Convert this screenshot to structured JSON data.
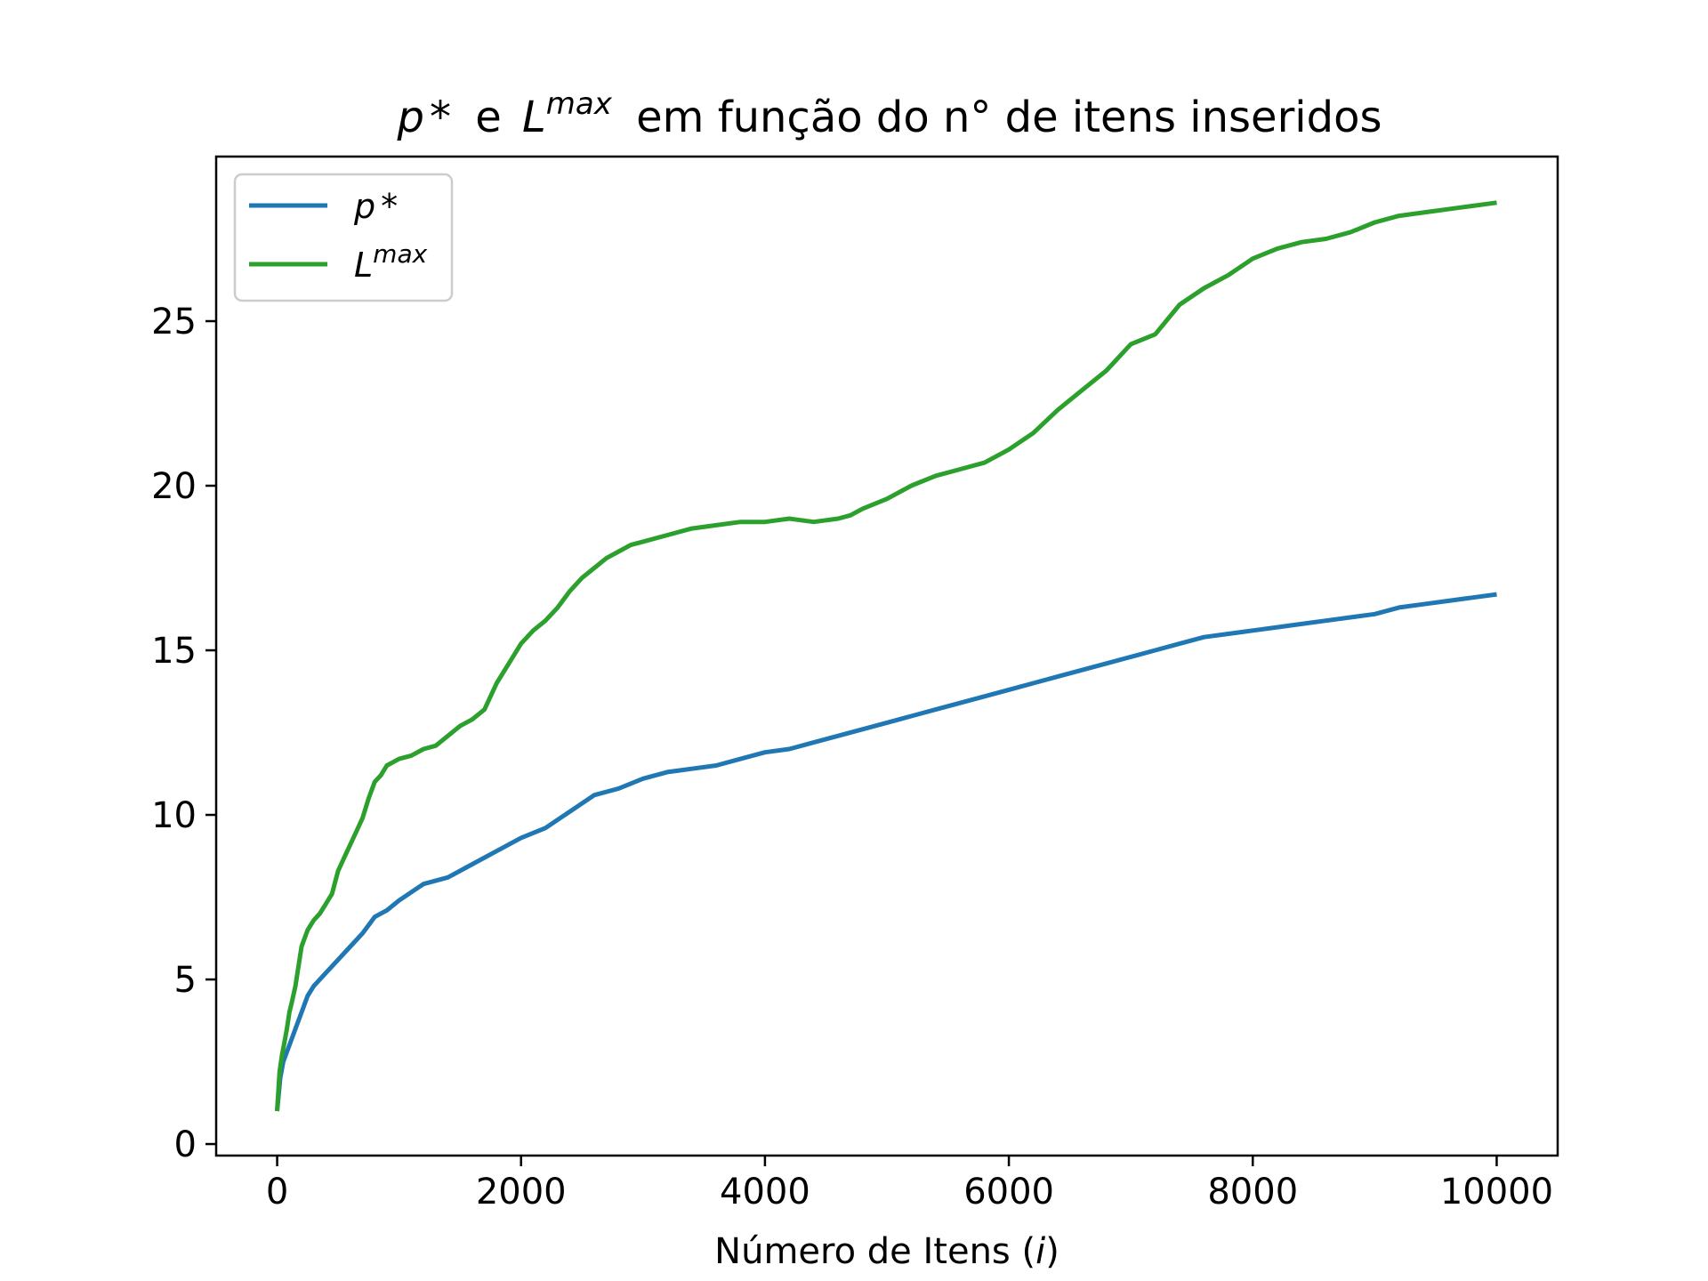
{
  "chart_data": {
    "type": "line",
    "title": {
      "p_symbol": "p",
      "p_star": "*",
      "connector": "e",
      "L_symbol": "L",
      "L_superscript": "max",
      "suffix": "em função do n° de itens inseridos"
    },
    "xlabel": {
      "text": "Número de Itens (",
      "var": "i",
      "close": ")"
    },
    "ylabel": "",
    "xlim": [
      -500,
      10500
    ],
    "ylim": [
      -0.35,
      30.0
    ],
    "xticks": [
      0,
      2000,
      4000,
      6000,
      8000,
      10000
    ],
    "yticks": [
      0,
      5,
      10,
      15,
      20,
      25
    ],
    "grid": false,
    "legend_position": "upper-left",
    "series": [
      {
        "name": "p*",
        "legend": {
          "symbol": "p",
          "suffix": "*"
        },
        "color": "#1f77b4",
        "x": [
          0,
          25,
          50,
          100,
          150,
          200,
          250,
          300,
          400,
          500,
          600,
          700,
          800,
          900,
          1000,
          1200,
          1400,
          1600,
          1800,
          2000,
          2200,
          2400,
          2600,
          2800,
          3000,
          3200,
          3400,
          3600,
          3800,
          4000,
          4200,
          4400,
          4600,
          4800,
          5000,
          5200,
          5400,
          5600,
          5800,
          6000,
          6200,
          6400,
          6600,
          6800,
          7000,
          7200,
          7400,
          7600,
          7800,
          8000,
          8200,
          8400,
          8600,
          8800,
          9000,
          9200,
          9400,
          9600,
          9800,
          10000
        ],
        "y": [
          1.0,
          2.0,
          2.5,
          3.0,
          3.5,
          4.0,
          4.5,
          4.8,
          5.2,
          5.6,
          6.0,
          6.4,
          6.9,
          7.1,
          7.4,
          7.9,
          8.1,
          8.5,
          8.9,
          9.3,
          9.6,
          10.1,
          10.6,
          10.8,
          11.1,
          11.3,
          11.4,
          11.5,
          11.7,
          11.9,
          12.0,
          12.2,
          12.4,
          12.6,
          12.8,
          13.0,
          13.2,
          13.4,
          13.6,
          13.8,
          14.0,
          14.2,
          14.4,
          14.6,
          14.8,
          15.0,
          15.2,
          15.4,
          15.5,
          15.6,
          15.7,
          15.8,
          15.9,
          16.0,
          16.1,
          16.3,
          16.4,
          16.5,
          16.6,
          16.7
        ]
      },
      {
        "name": "Lmax",
        "legend": {
          "symbol": "L",
          "superscript": "max"
        },
        "color": "#2ca02c",
        "x": [
          0,
          20,
          40,
          60,
          80,
          100,
          120,
          150,
          200,
          250,
          300,
          350,
          400,
          450,
          500,
          550,
          600,
          650,
          700,
          750,
          800,
          850,
          900,
          950,
          1000,
          1100,
          1200,
          1300,
          1400,
          1500,
          1600,
          1700,
          1800,
          1900,
          2000,
          2100,
          2200,
          2300,
          2400,
          2500,
          2600,
          2700,
          2800,
          2900,
          3000,
          3200,
          3400,
          3600,
          3800,
          4000,
          4200,
          4400,
          4600,
          4700,
          4800,
          5000,
          5200,
          5400,
          5600,
          5800,
          6000,
          6200,
          6400,
          6600,
          6800,
          7000,
          7200,
          7400,
          7600,
          7800,
          8000,
          8200,
          8400,
          8600,
          8800,
          9000,
          9200,
          9400,
          9600,
          9800,
          10000
        ],
        "y": [
          1.0,
          2.2,
          2.7,
          3.1,
          3.5,
          4.0,
          4.3,
          4.8,
          6.0,
          6.5,
          6.8,
          7.0,
          7.3,
          7.6,
          8.3,
          8.7,
          9.1,
          9.5,
          9.9,
          10.5,
          11.0,
          11.2,
          11.5,
          11.6,
          11.7,
          11.8,
          12.0,
          12.1,
          12.4,
          12.7,
          12.9,
          13.2,
          14.0,
          14.6,
          15.2,
          15.6,
          15.9,
          16.3,
          16.8,
          17.2,
          17.5,
          17.8,
          18.0,
          18.2,
          18.3,
          18.5,
          18.7,
          18.8,
          18.9,
          18.9,
          19.0,
          18.9,
          19.0,
          19.1,
          19.3,
          19.6,
          20.0,
          20.3,
          20.5,
          20.7,
          21.1,
          21.6,
          22.3,
          22.9,
          23.5,
          24.3,
          24.6,
          25.5,
          26.0,
          26.4,
          26.9,
          27.2,
          27.4,
          27.5,
          27.7,
          28.0,
          28.2,
          28.3,
          28.4,
          28.5,
          28.6
        ]
      }
    ]
  }
}
